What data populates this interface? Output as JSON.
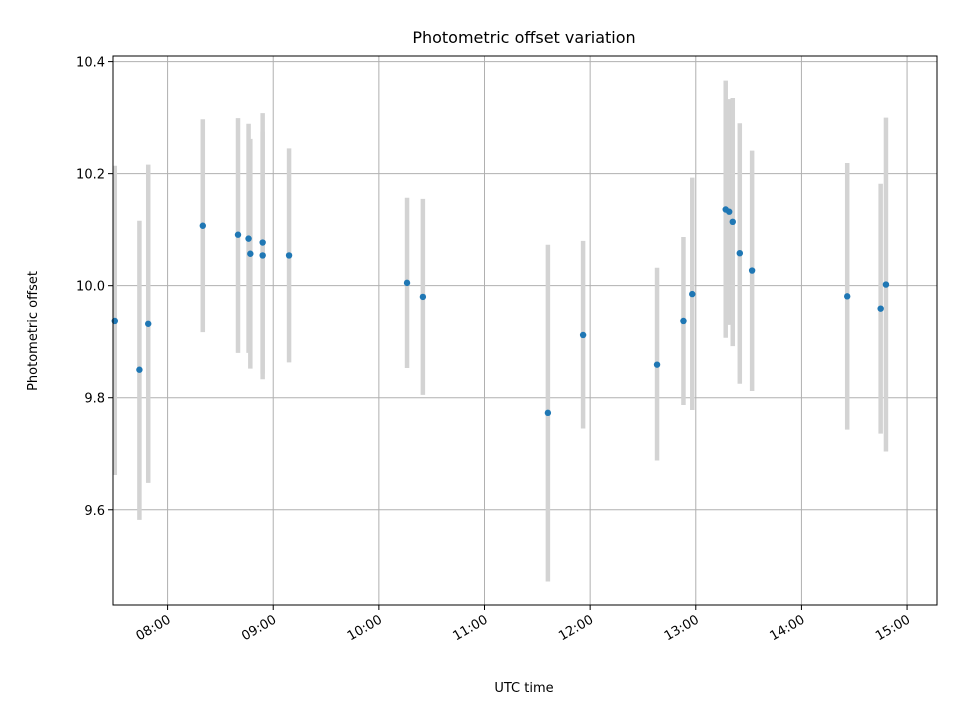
{
  "chart_data": {
    "type": "scatter",
    "title": "Photometric offset variation",
    "xlabel": "UTC time",
    "ylabel": "Photometric offset",
    "x_ticks": [
      "08:00",
      "09:00",
      "10:00",
      "11:00",
      "12:00",
      "13:00",
      "14:00",
      "15:00"
    ],
    "y_ticks": [
      "9.6",
      "9.8",
      "10.0",
      "10.2",
      "10.4"
    ],
    "xlim": [
      "07:29",
      "15:17"
    ],
    "ylim": [
      9.43,
      10.41
    ],
    "grid": true,
    "point_color": "#1f77b4",
    "errorbar_color": "#d3d3d3",
    "points": [
      {
        "x": "07:30",
        "y": 9.937,
        "lo": 9.662,
        "hi": 10.214
      },
      {
        "x": "07:44",
        "y": 9.85,
        "lo": 9.582,
        "hi": 10.116
      },
      {
        "x": "07:49",
        "y": 9.932,
        "lo": 9.648,
        "hi": 10.216
      },
      {
        "x": "08:20",
        "y": 10.107,
        "lo": 9.917,
        "hi": 10.297
      },
      {
        "x": "08:40",
        "y": 10.091,
        "lo": 9.88,
        "hi": 10.299
      },
      {
        "x": "08:46",
        "y": 10.084,
        "lo": 9.88,
        "hi": 10.289
      },
      {
        "x": "08:47",
        "y": 10.057,
        "lo": 9.852,
        "hi": 10.262
      },
      {
        "x": "08:54",
        "y": 10.077,
        "lo": 9.843,
        "hi": 10.308
      },
      {
        "x": "08:54",
        "y": 10.054,
        "lo": 9.833,
        "hi": 10.275
      },
      {
        "x": "09:09",
        "y": 10.054,
        "lo": 9.863,
        "hi": 10.245
      },
      {
        "x": "10:16",
        "y": 10.005,
        "lo": 9.853,
        "hi": 10.157
      },
      {
        "x": "10:25",
        "y": 9.98,
        "lo": 9.805,
        "hi": 10.155
      },
      {
        "x": "11:36",
        "y": 9.773,
        "lo": 9.472,
        "hi": 10.073
      },
      {
        "x": "11:56",
        "y": 9.912,
        "lo": 9.745,
        "hi": 10.08
      },
      {
        "x": "12:38",
        "y": 9.859,
        "lo": 9.688,
        "hi": 10.032
      },
      {
        "x": "12:53",
        "y": 9.937,
        "lo": 9.787,
        "hi": 10.087
      },
      {
        "x": "12:58",
        "y": 9.985,
        "lo": 9.778,
        "hi": 10.193
      },
      {
        "x": "13:17",
        "y": 10.136,
        "lo": 9.907,
        "hi": 10.366
      },
      {
        "x": "13:19",
        "y": 10.132,
        "lo": 9.93,
        "hi": 10.333
      },
      {
        "x": "13:21",
        "y": 10.114,
        "lo": 9.892,
        "hi": 10.335
      },
      {
        "x": "13:25",
        "y": 10.058,
        "lo": 9.825,
        "hi": 10.29
      },
      {
        "x": "13:32",
        "y": 10.027,
        "lo": 9.812,
        "hi": 10.241
      },
      {
        "x": "14:26",
        "y": 9.981,
        "lo": 9.743,
        "hi": 10.219
      },
      {
        "x": "14:45",
        "y": 9.959,
        "lo": 9.736,
        "hi": 10.182
      },
      {
        "x": "14:48",
        "y": 10.002,
        "lo": 9.704,
        "hi": 10.3
      }
    ]
  }
}
